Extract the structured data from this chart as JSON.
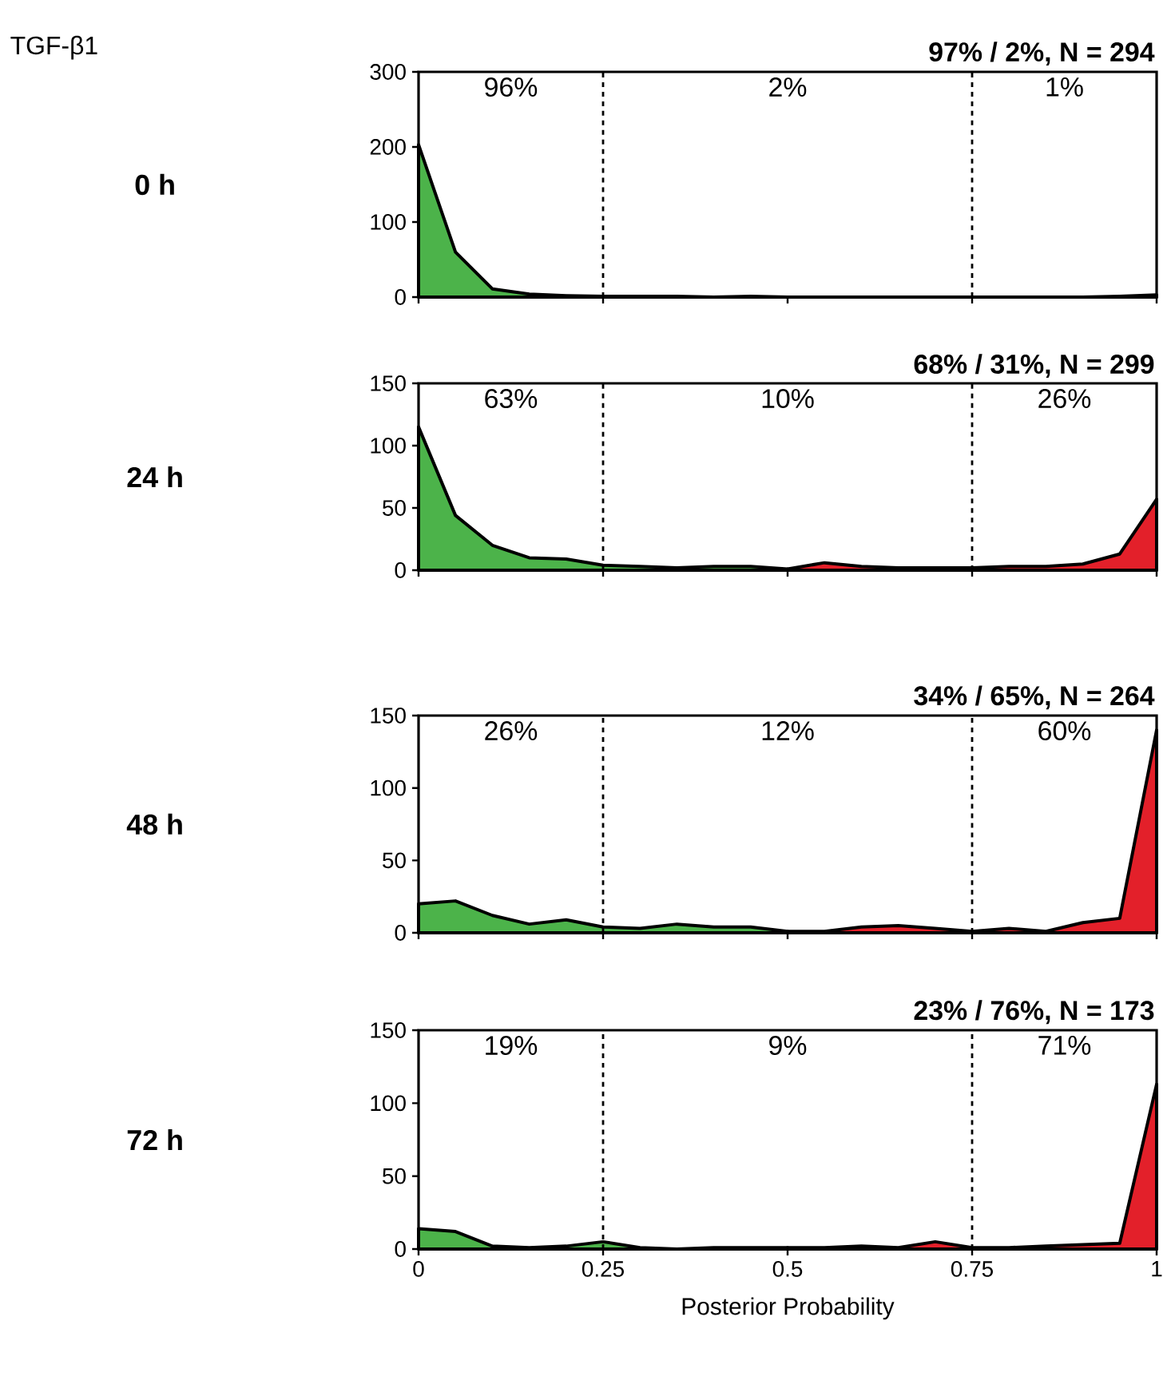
{
  "chart_data": [
    {
      "type": "area",
      "title": "97% / 2%, N = 294",
      "ylabel": "0 h",
      "xlim": [
        0,
        1
      ],
      "ylim": [
        0,
        300
      ],
      "xticks": [
        0,
        0.25,
        0.5,
        0.75,
        1
      ],
      "yticks": [
        0,
        100,
        200,
        300
      ],
      "tick_labels": "y",
      "ref_lines": [
        {
          "axis": "x",
          "value": 0.25,
          "line_style": "dashed"
        },
        {
          "axis": "x",
          "value": 0.75,
          "line_style": "dashed"
        }
      ],
      "annotations": [
        "96%",
        "2%",
        "1%",
        "TGF-β1"
      ],
      "series": [
        {
          "color": "#4cb34a",
          "x": [
            0,
            0.05,
            0.1,
            0.15,
            0.2,
            0.25,
            0.3,
            0.35,
            0.4,
            0.45,
            0.5
          ],
          "values": [
            203,
            60,
            11,
            4,
            2,
            1,
            1,
            1,
            0,
            1,
            0
          ]
        },
        {
          "color": "#e3202a",
          "x": [
            0.5,
            0.55,
            0.6,
            0.65,
            0.7,
            0.75,
            0.8,
            0.85,
            0.9,
            0.95,
            1
          ],
          "values": [
            0,
            0,
            0,
            0,
            0,
            0,
            0,
            0,
            0,
            1,
            3
          ]
        }
      ]
    },
    {
      "type": "area",
      "title": "68% / 31%, N = 299",
      "ylabel": "24 h",
      "xlim": [
        0,
        1
      ],
      "ylim": [
        0,
        150
      ],
      "xticks": [
        0,
        0.25,
        0.5,
        0.75,
        1
      ],
      "yticks": [
        0,
        50,
        100,
        150
      ],
      "tick_labels": "y",
      "ref_lines": [
        {
          "axis": "x",
          "value": 0.25,
          "line_style": "dashed"
        },
        {
          "axis": "x",
          "value": 0.75,
          "line_style": "dashed"
        }
      ],
      "annotations": [
        "63%",
        "10%",
        "26%"
      ],
      "series": [
        {
          "color": "#4cb34a",
          "x": [
            0,
            0.05,
            0.1,
            0.15,
            0.2,
            0.25,
            0.3,
            0.35,
            0.4,
            0.45,
            0.5
          ],
          "values": [
            115,
            44,
            20,
            10,
            9,
            4,
            3,
            2,
            3,
            3,
            1
          ]
        },
        {
          "color": "#e3202a",
          "x": [
            0.5,
            0.55,
            0.6,
            0.65,
            0.7,
            0.75,
            0.8,
            0.85,
            0.9,
            0.95,
            1
          ],
          "values": [
            1,
            6,
            3,
            2,
            2,
            2,
            3,
            3,
            5,
            13,
            57
          ]
        }
      ]
    },
    {
      "type": "area",
      "title": "34% / 65%, N = 264",
      "ylabel": "48 h",
      "xlim": [
        0,
        1
      ],
      "ylim": [
        0,
        150
      ],
      "xticks": [
        0,
        0.25,
        0.5,
        0.75,
        1
      ],
      "yticks": [
        0,
        50,
        100,
        150
      ],
      "tick_labels": "y",
      "ref_lines": [
        {
          "axis": "x",
          "value": 0.25,
          "line_style": "dashed"
        },
        {
          "axis": "x",
          "value": 0.75,
          "line_style": "dashed"
        }
      ],
      "annotations": [
        "26%",
        "12%",
        "60%"
      ],
      "series": [
        {
          "color": "#4cb34a",
          "x": [
            0,
            0.05,
            0.1,
            0.15,
            0.2,
            0.25,
            0.3,
            0.35,
            0.4,
            0.45,
            0.5
          ],
          "values": [
            20,
            22,
            12,
            6,
            9,
            4,
            3,
            6,
            4,
            4,
            1
          ]
        },
        {
          "color": "#e3202a",
          "x": [
            0.5,
            0.55,
            0.6,
            0.65,
            0.7,
            0.75,
            0.8,
            0.85,
            0.9,
            0.95,
            1
          ],
          "values": [
            1,
            1,
            4,
            5,
            3,
            1,
            3,
            1,
            7,
            10,
            140
          ]
        }
      ]
    },
    {
      "type": "area",
      "title": "23% / 76%, N = 173",
      "ylabel": "72 h",
      "xlabel": "Posterior Probability",
      "xlim": [
        0,
        1
      ],
      "ylim": [
        0,
        150
      ],
      "xticks": [
        0,
        0.25,
        0.5,
        0.75,
        1
      ],
      "yticks": [
        0,
        50,
        100,
        150
      ],
      "ref_lines": [
        {
          "axis": "x",
          "value": 0.25,
          "line_style": "dashed"
        },
        {
          "axis": "x",
          "value": 0.75,
          "line_style": "dashed"
        }
      ],
      "annotations": [
        "19%",
        "9%",
        "71%"
      ],
      "series": [
        {
          "color": "#4cb34a",
          "x": [
            0,
            0.05,
            0.1,
            0.15,
            0.2,
            0.25,
            0.3,
            0.35,
            0.4,
            0.45,
            0.5
          ],
          "values": [
            14,
            12,
            2,
            1,
            2,
            5,
            1,
            0,
            1,
            1,
            1
          ]
        },
        {
          "color": "#e3202a",
          "x": [
            0.5,
            0.55,
            0.6,
            0.65,
            0.7,
            0.75,
            0.8,
            0.85,
            0.9,
            0.95,
            1
          ],
          "values": [
            1,
            1,
            2,
            1,
            5,
            1,
            1,
            2,
            3,
            4,
            113
          ]
        }
      ]
    }
  ]
}
